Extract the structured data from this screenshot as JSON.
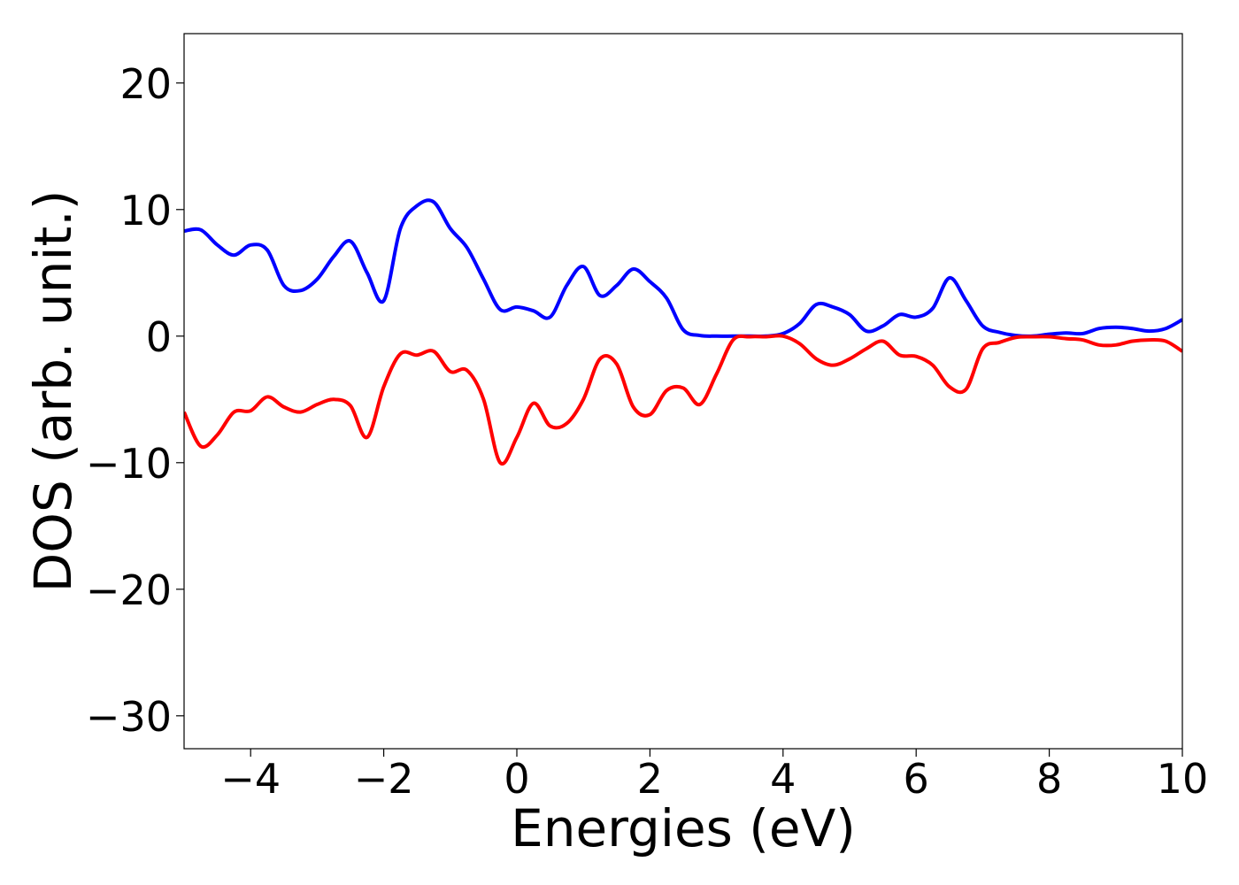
{
  "chart_data": {
    "type": "line",
    "xlabel": "Energies (eV)",
    "ylabel": "DOS (arb. unit.)",
    "x": [
      -5,
      -4.75,
      -4.5,
      -4.25,
      -4,
      -3.75,
      -3.5,
      -3.25,
      -3,
      -2.75,
      -2.5,
      -2.25,
      -2,
      -1.75,
      -1.5,
      -1.25,
      -1,
      -0.75,
      -0.5,
      -0.25,
      0,
      0.25,
      0.5,
      0.75,
      1,
      1.25,
      1.5,
      1.75,
      2,
      2.25,
      2.5,
      2.75,
      3,
      3.25,
      3.5,
      3.75,
      4,
      4.25,
      4.5,
      4.75,
      5,
      5.25,
      5.5,
      5.75,
      6,
      6.25,
      6.5,
      6.75,
      7,
      7.25,
      7.5,
      7.75,
      8,
      8.25,
      8.5,
      8.75,
      9,
      9.25,
      9.5,
      9.75,
      10
    ],
    "series": [
      {
        "color": "#0000ff",
        "values": [
          8.3,
          8.4,
          7.2,
          6.4,
          7.2,
          6.8,
          4.0,
          3.6,
          4.5,
          6.3,
          7.5,
          5.0,
          2.8,
          8.5,
          10.3,
          10.6,
          8.5,
          7.0,
          4.5,
          2.1,
          2.3,
          2.0,
          1.5,
          4.0,
          5.5,
          3.2,
          4.0,
          5.3,
          4.3,
          3.0,
          0.5,
          0.05,
          0,
          0,
          0,
          0,
          0.2,
          1.0,
          2.5,
          2.3,
          1.7,
          0.4,
          0.8,
          1.7,
          1.5,
          2.2,
          4.6,
          2.8,
          0.8,
          0.3,
          0.05,
          0,
          0.15,
          0.25,
          0.2,
          0.6,
          0.7,
          0.6,
          0.4,
          0.6,
          1.3
        ]
      },
      {
        "color": "#ff0000",
        "values": [
          -6.0,
          -8.7,
          -7.8,
          -6.0,
          -5.9,
          -4.8,
          -5.6,
          -6.0,
          -5.4,
          -5.0,
          -5.5,
          -8.0,
          -4.0,
          -1.4,
          -1.5,
          -1.2,
          -2.8,
          -2.7,
          -5.0,
          -10.0,
          -8.0,
          -5.3,
          -7.1,
          -6.9,
          -5.0,
          -1.8,
          -2.2,
          -5.6,
          -6.2,
          -4.3,
          -4.1,
          -5.4,
          -3.0,
          -0.3,
          -0.05,
          -0.05,
          0,
          -0.6,
          -1.8,
          -2.3,
          -1.8,
          -1.0,
          -0.4,
          -1.5,
          -1.6,
          -2.3,
          -4.0,
          -4.2,
          -1.0,
          -0.5,
          -0.1,
          -0.05,
          -0.05,
          -0.2,
          -0.3,
          -0.7,
          -0.7,
          -0.4,
          -0.3,
          -0.4,
          -1.2
        ]
      }
    ],
    "xlim": [
      -5,
      10
    ],
    "xticks": [
      {
        "value": -4,
        "label": "−4"
      },
      {
        "value": -2,
        "label": "−2"
      },
      0,
      2,
      4,
      6,
      8,
      10
    ],
    "ylim": [
      -32.6,
      23.9
    ],
    "yticks": [
      {
        "value": -30,
        "label": "−30"
      },
      {
        "value": -20,
        "label": "−20"
      },
      {
        "value": -10,
        "label": "−10"
      },
      0,
      10,
      20
    ],
    "grid": false
  }
}
